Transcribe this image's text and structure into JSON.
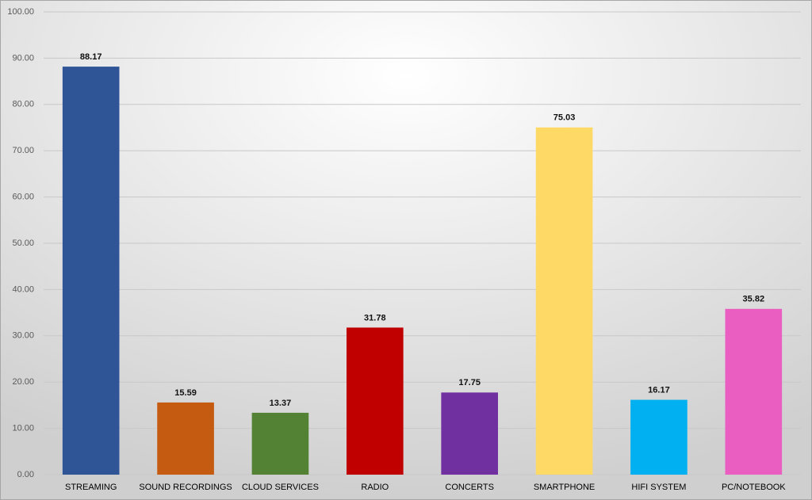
{
  "chart_data": {
    "type": "bar",
    "categories": [
      "STREAMING",
      "SOUND RECORDINGS",
      "CLOUD SERVICES",
      "RADIO",
      "CONCERTS",
      "SMARTPHONE",
      "HIFI SYSTEM",
      "PC/NOTEBOOK"
    ],
    "values": [
      88.17,
      15.59,
      13.37,
      31.78,
      17.75,
      75.03,
      16.17,
      35.82
    ],
    "colors": [
      "#2f5597",
      "#c55a11",
      "#548235",
      "#c00000",
      "#7030a0",
      "#ffd966",
      "#00b0f0",
      "#e95ec0"
    ],
    "ylim": [
      0,
      100
    ],
    "yticks": [
      {
        "value": 0,
        "label": "0.00"
      },
      {
        "value": 10,
        "label": "10.00"
      },
      {
        "value": 20,
        "label": "20.00"
      },
      {
        "value": 30,
        "label": "30.00"
      },
      {
        "value": 40,
        "label": "40.00"
      },
      {
        "value": 50,
        "label": "50.00"
      },
      {
        "value": 60,
        "label": "60.00"
      },
      {
        "value": 70,
        "label": "70.00"
      },
      {
        "value": 80,
        "label": "80.00"
      },
      {
        "value": 90,
        "label": "90.00"
      },
      {
        "value": 100,
        "label": "100.00"
      }
    ],
    "grid": true
  }
}
